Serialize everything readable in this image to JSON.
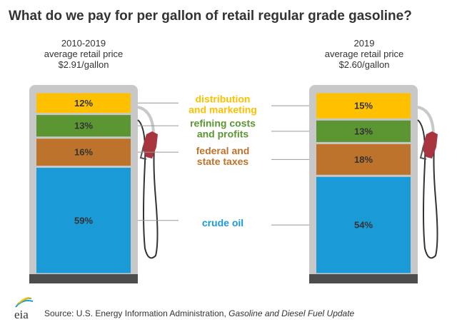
{
  "chart_data": {
    "type": "bar",
    "stacked": true,
    "title": "What do we pay for per gallon of retail regular grade gasoline?",
    "categories": [
      "crude oil",
      "federal and state taxes",
      "refining costs and profits",
      "distribution and marketing"
    ],
    "category_labels": [
      [
        "crude oil"
      ],
      [
        "federal and",
        "state taxes"
      ],
      [
        "refining costs",
        "and profits"
      ],
      [
        "distribution",
        "and marketing"
      ]
    ],
    "colors": [
      "#1A9AD6",
      "#BD732B",
      "#5C9632",
      "#FFC000"
    ],
    "label_colors": [
      "#1A9AD6",
      "#BD732B",
      "#5C9632",
      "#FFC000"
    ],
    "unit": "%",
    "series": [
      {
        "name": "2010-2019",
        "lines": [
          "2010-2019",
          "average retail price",
          "$2.91/gallon"
        ],
        "values": [
          59,
          16,
          13,
          12
        ]
      },
      {
        "name": "2019",
        "lines": [
          "2019",
          "average retail price",
          "$2.60/gallon"
        ],
        "values": [
          54,
          18,
          13,
          15
        ]
      }
    ]
  },
  "source": {
    "prefix": "Source: U.S. Energy Information Administration, ",
    "italic": "Gasoline and Diesel Fuel Update"
  },
  "logo": "eia"
}
